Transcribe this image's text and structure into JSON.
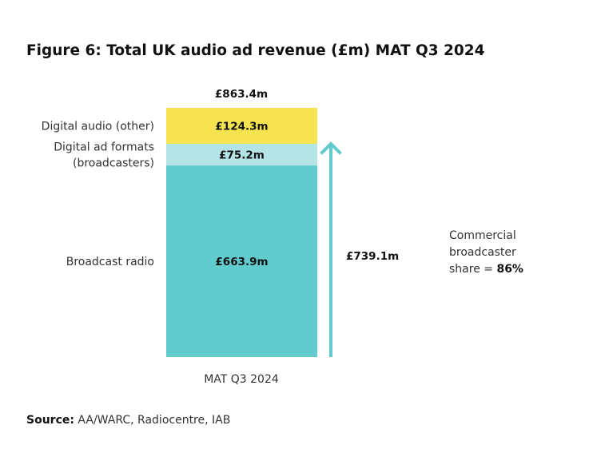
{
  "chart_data": {
    "type": "bar",
    "stacked": true,
    "title": "Figure 6: Total UK audio ad revenue (£m) MAT Q3 2024",
    "categories": [
      "MAT Q3 2024"
    ],
    "series": [
      {
        "name": "Broadcast radio",
        "label_lines": [
          "Broadcast radio"
        ],
        "values": [
          663.9
        ],
        "value_label": "£663.9m",
        "color": "#62cbce"
      },
      {
        "name": "Digital ad formats (broadcasters)",
        "label_lines": [
          "Digital ad formats",
          "(broadcasters)"
        ],
        "values": [
          75.2
        ],
        "value_label": "£75.2m",
        "color": "#b4e4e6"
      },
      {
        "name": "Digital audio (other)",
        "label_lines": [
          "Digital audio (other)"
        ],
        "values": [
          124.3
        ],
        "value_label": "£124.3m",
        "color": "#f5e34f"
      }
    ],
    "total": 863.4,
    "total_label": "£863.4m",
    "bracket": {
      "value": 739.1,
      "label": "£739.1m",
      "color": "#62cbce"
    },
    "annotation": {
      "lines": [
        "Commercial",
        "broadcaster"
      ],
      "share_prefix": "share = ",
      "share_value": "86%"
    },
    "source_label": "Source:",
    "source_text": " AA/WARC, Radiocentre, IAB"
  }
}
